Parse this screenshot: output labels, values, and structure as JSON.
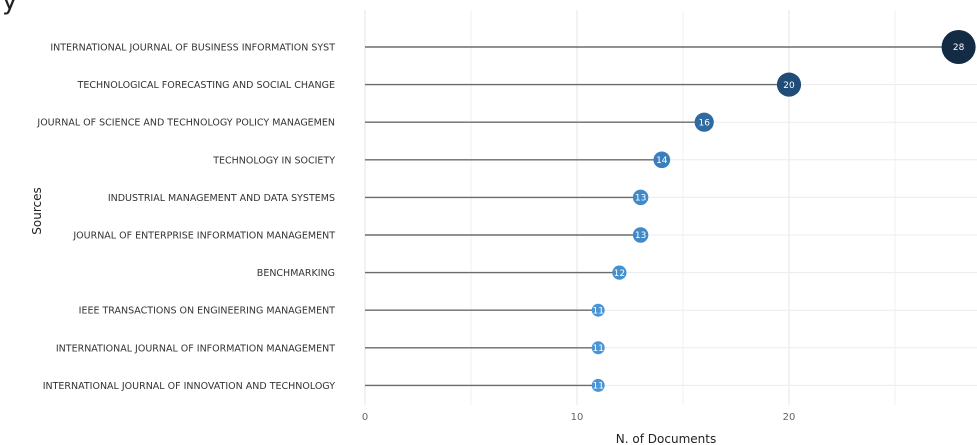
{
  "top_fragment": "y",
  "chart_data": {
    "type": "lollipop",
    "title": "",
    "xlabel": "N. of Documents",
    "ylabel": "Sources",
    "xlim": [
      0,
      29
    ],
    "xticks": [
      0,
      10,
      20
    ],
    "grid": true,
    "categories": [
      "INTERNATIONAL JOURNAL OF BUSINESS INFORMATION SYST",
      "TECHNOLOGICAL FORECASTING AND SOCIAL CHANGE",
      "JOURNAL OF SCIENCE AND TECHNOLOGY POLICY MANAGEMEN",
      "TECHNOLOGY IN SOCIETY",
      "INDUSTRIAL MANAGEMENT AND DATA SYSTEMS",
      "JOURNAL OF ENTERPRISE INFORMATION MANAGEMENT",
      "BENCHMARKING",
      "IEEE TRANSACTIONS ON ENGINEERING MANAGEMENT",
      "INTERNATIONAL JOURNAL OF INFORMATION MANAGEMENT",
      "INTERNATIONAL JOURNAL OF INNOVATION AND TECHNOLOGY"
    ],
    "values": [
      28,
      20,
      16,
      14,
      13,
      13,
      12,
      11,
      11,
      11
    ],
    "colors": [
      "#132b43",
      "#1f4d78",
      "#2f6aa0",
      "#3a7fbd",
      "#4189c8",
      "#4189c8",
      "#4590d0",
      "#4a95d6",
      "#4a95d6",
      "#4a95d6"
    ]
  }
}
